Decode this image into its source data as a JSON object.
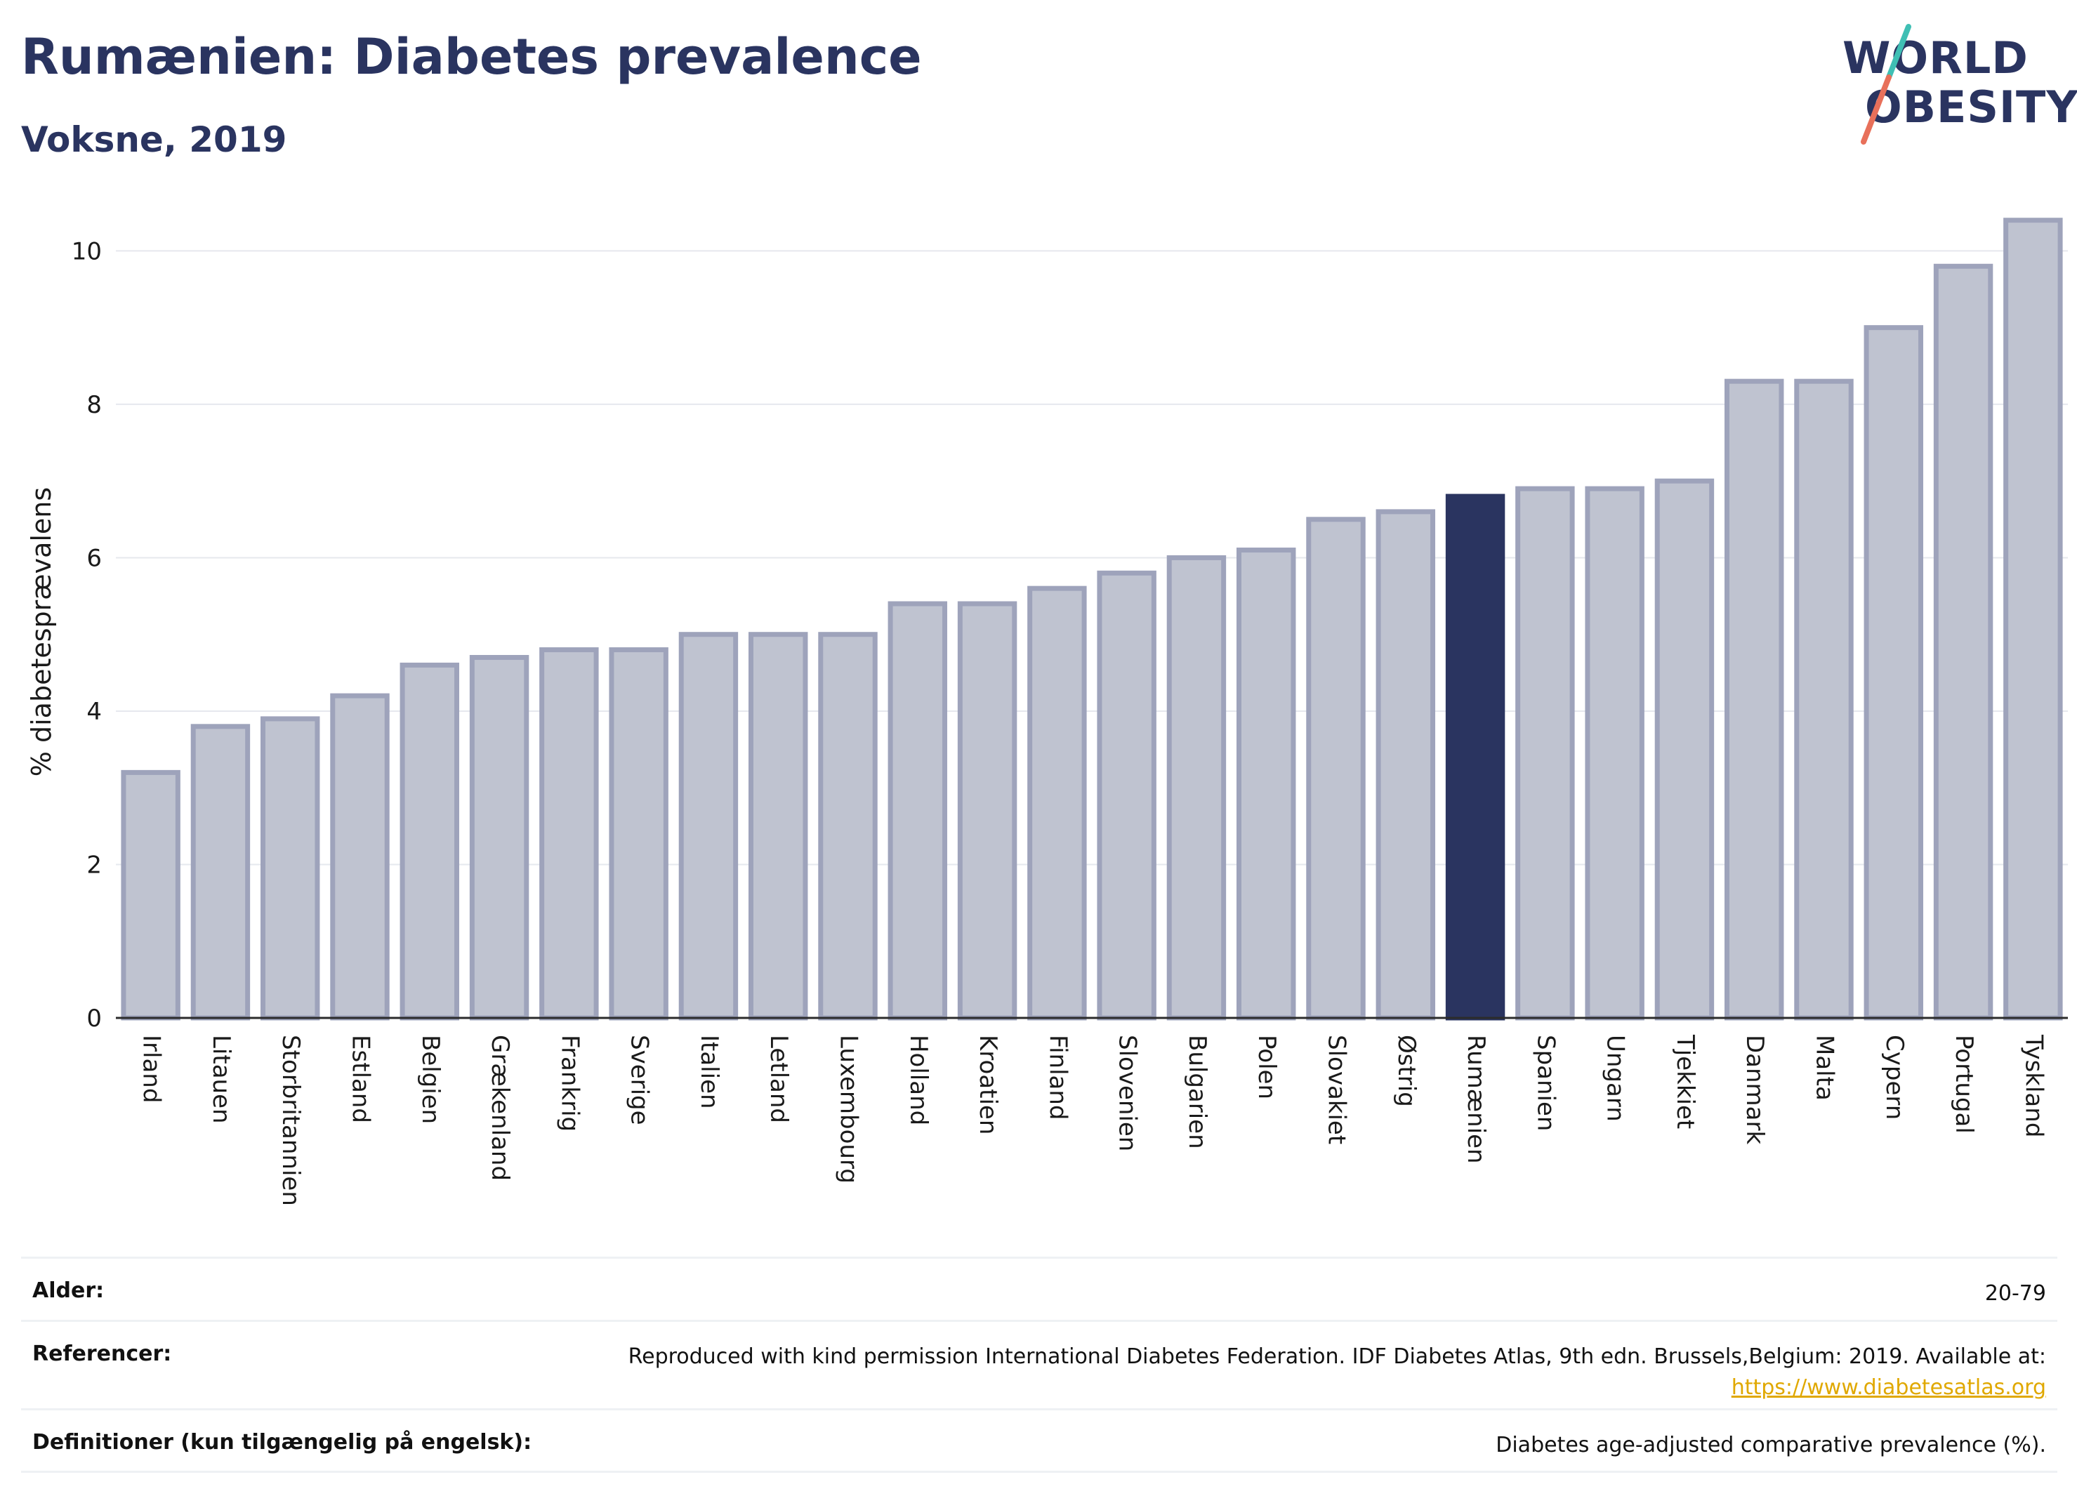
{
  "header": {
    "title": "Rumænien: Diabetes prevalence",
    "subtitle": "Voksne, 2019"
  },
  "logo": {
    "line1": "WORLD",
    "line2": "OBESITY",
    "colors": {
      "text": "#2a3460",
      "slash_top": "#3fbfb4",
      "slash_bottom": "#e8705a"
    }
  },
  "chart_data": {
    "type": "bar",
    "title": "Rumænien: Diabetes prevalence",
    "subtitle": "Voksne, 2019",
    "ylabel": "% diabetesprævalens",
    "xlabel": "",
    "ylim": [
      0,
      10.8
    ],
    "yticks": [
      0,
      2,
      4,
      6,
      8,
      10
    ],
    "grid": true,
    "highlight": "Rumænien",
    "colors": {
      "bar": "#bfc3d0",
      "bar_edge": "#9ea3bb",
      "highlight": "#2a3460"
    },
    "categories": [
      "Irland",
      "Litauen",
      "Storbritannien",
      "Estland",
      "Belgien",
      "Grækenland",
      "Frankrig",
      "Sverige",
      "Italien",
      "Letland",
      "Luxembourg",
      "Holland",
      "Kroatien",
      "Finland",
      "Slovenien",
      "Bulgarien",
      "Polen",
      "Slovakiet",
      "Østrig",
      "Rumænien",
      "Spanien",
      "Ungarn",
      "Tjekkiet",
      "Danmark",
      "Malta",
      "Cypern",
      "Portugal",
      "Tyskland"
    ],
    "values": [
      3.2,
      3.8,
      3.9,
      4.2,
      4.6,
      4.7,
      4.8,
      4.8,
      5.0,
      5.0,
      5.0,
      5.4,
      5.4,
      5.6,
      5.8,
      6.0,
      6.1,
      6.5,
      6.6,
      6.8,
      6.9,
      6.9,
      7.0,
      8.3,
      8.3,
      9.0,
      9.8,
      10.4
    ]
  },
  "info": {
    "age_label": "Alder:",
    "age_value": "20-79",
    "ref_label": "Referencer:",
    "ref_value": "Reproduced with kind permission International Diabetes Federation. IDF Diabetes Atlas, 9th edn. Brussels,Belgium: 2019. Available at:",
    "ref_link": "https://www.diabetesatlas.org",
    "def_label": "Definitioner (kun tilgængelig på engelsk):",
    "def_value": "Diabetes age-adjusted comparative prevalence (%)."
  }
}
